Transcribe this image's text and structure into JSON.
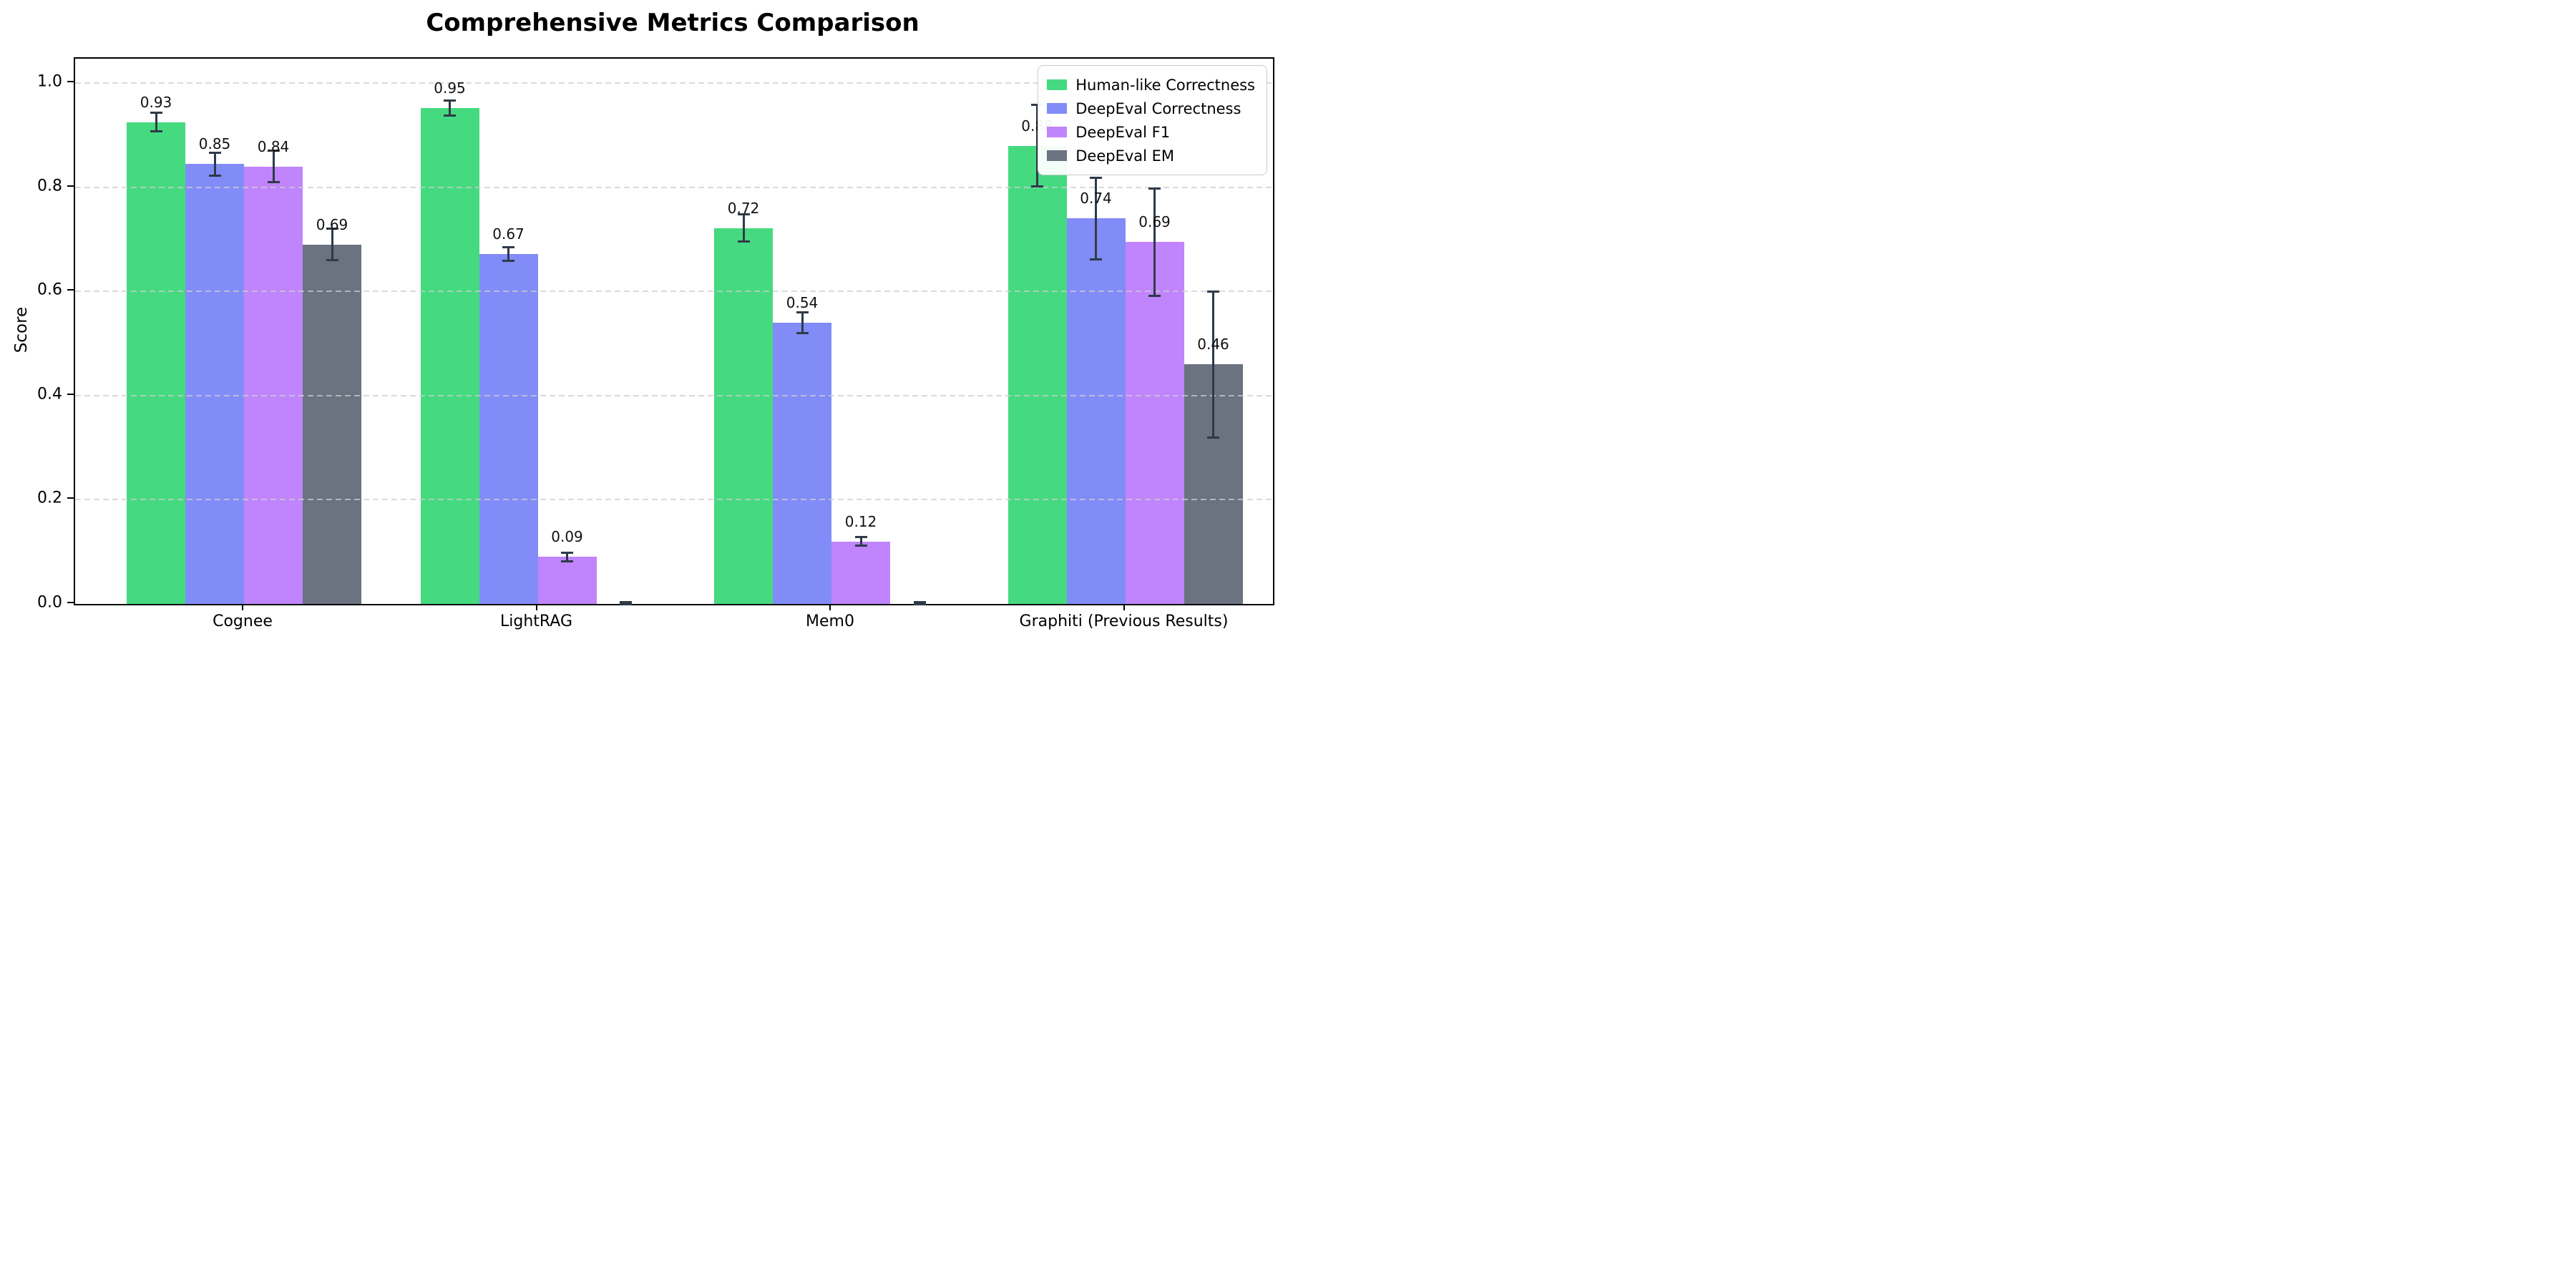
{
  "chart_data": {
    "type": "bar",
    "title": "Comprehensive Metrics Comparison",
    "ylabel": "Score",
    "xlabel": "",
    "ylim": [
      0,
      1.047
    ],
    "ytick_values": [
      0.0,
      0.2,
      0.4,
      0.6,
      0.8,
      1.0
    ],
    "yticks": [
      "0.0",
      "0.2",
      "0.4",
      "0.6",
      "0.8",
      "1.0"
    ],
    "grid": "horizontal dashed gridlines drawn over bars",
    "legend_position": "upper right",
    "categories": [
      "Cognee",
      "LightRAG",
      "Mem0",
      "Graphiti (Previous Results)"
    ],
    "series": [
      {
        "name": "Human-like Correctness",
        "color": "#45da80",
        "values": [
          0.925,
          0.952,
          0.722,
          0.88
        ],
        "errors": [
          0.018,
          0.014,
          0.026,
          0.078
        ],
        "labels": [
          "0.93",
          "0.95",
          "0.72",
          "0.88"
        ]
      },
      {
        "name": "DeepEval Correctness",
        "color": "#818cf8",
        "values": [
          0.845,
          0.672,
          0.54,
          0.74
        ],
        "errors": [
          0.022,
          0.013,
          0.02,
          0.078
        ],
        "labels": [
          "0.85",
          "0.67",
          "0.54",
          "0.74"
        ]
      },
      {
        "name": "DeepEval F1",
        "color": "#c084fc",
        "values": [
          0.84,
          0.09,
          0.12,
          0.695
        ],
        "errors": [
          0.03,
          0.008,
          0.008,
          0.103
        ],
        "labels": [
          "0.84",
          "0.09",
          "0.12",
          "0.69"
        ]
      },
      {
        "name": "DeepEval EM",
        "color": "#6b7280",
        "values": [
          0.69,
          0.0,
          0.0,
          0.46
        ],
        "errors": [
          0.03,
          0.004,
          0.004,
          0.14
        ],
        "labels": [
          "0.69",
          "",
          "",
          "0.46"
        ]
      }
    ],
    "error_bar_color": "#2f3a48"
  }
}
